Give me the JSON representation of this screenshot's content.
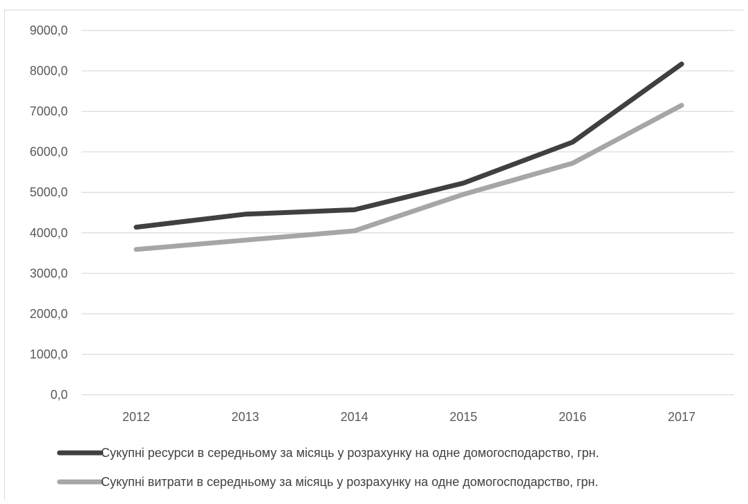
{
  "chart_data": {
    "type": "line",
    "title": "",
    "xlabel": "",
    "ylabel": "",
    "categories": [
      "2012",
      "2013",
      "2014",
      "2015",
      "2016",
      "2017"
    ],
    "ylim": [
      0,
      9000
    ],
    "ytick_values": [
      0,
      1000,
      2000,
      3000,
      4000,
      5000,
      6000,
      7000,
      8000,
      9000
    ],
    "ytick_labels": [
      "0,0",
      "1000,0",
      "2000,0",
      "3000,0",
      "4000,0",
      "5000,0",
      "6000,0",
      "7000,0",
      "8000,0",
      "9000,0"
    ],
    "grid": true,
    "legend_position": "bottom",
    "series": [
      {
        "name": "Сукупні ресурси в середньому за місяць у розрахунку на одне домогосподарство, грн.",
        "color": "#404040",
        "values": [
          4140,
          4460,
          4570,
          5230,
          6240,
          8170
        ]
      },
      {
        "name": "Сукупні витрати в середньому за місяць у розрахунку на одне домогосподарство, грн.",
        "color": "#a6a6a6",
        "values": [
          3590,
          3820,
          4050,
          4950,
          5720,
          7150
        ]
      }
    ]
  }
}
